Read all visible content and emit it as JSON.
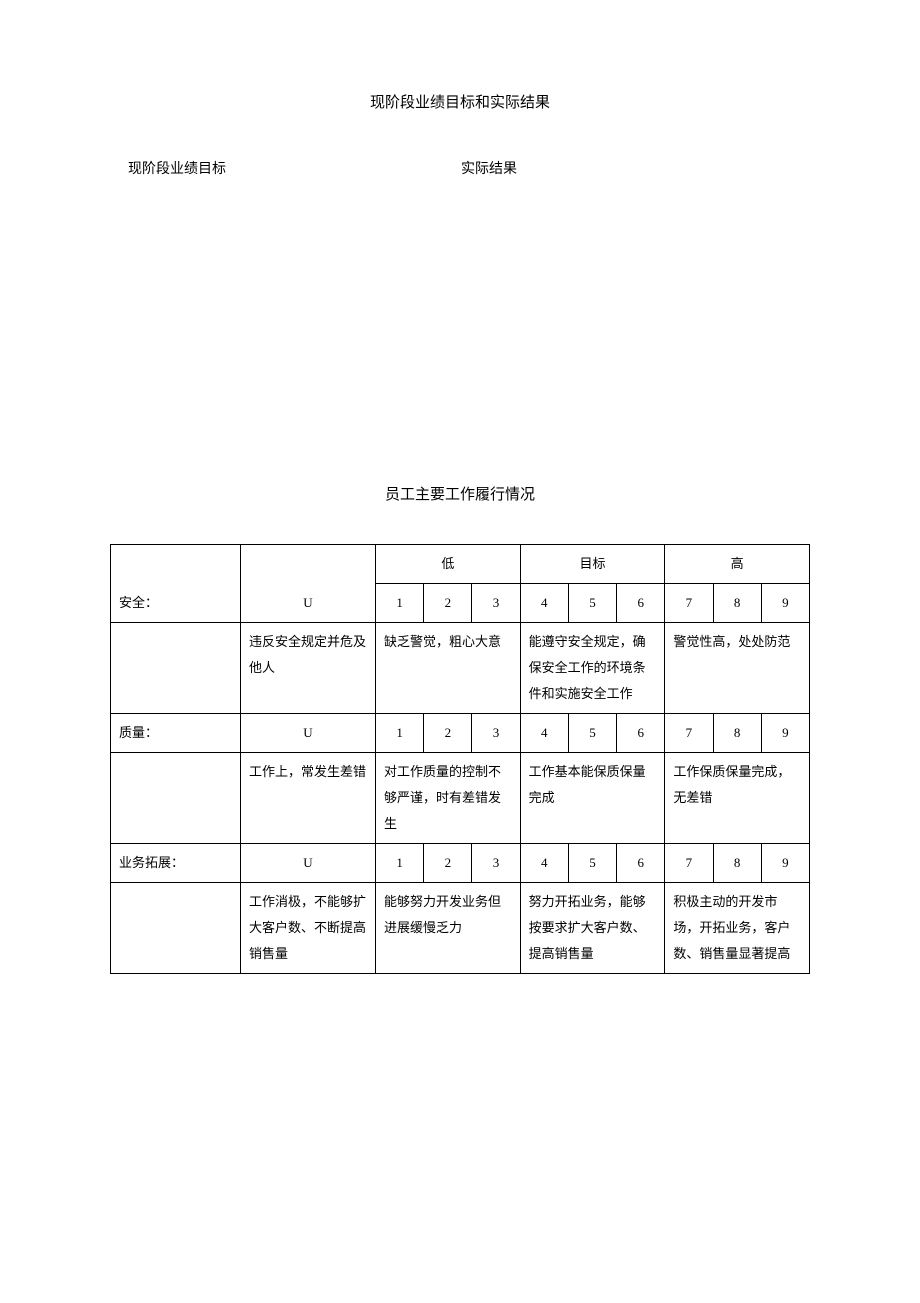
{
  "title1": "现阶段业绩目标和实际结果",
  "subtitle_left": "现阶段业绩目标",
  "subtitle_right": "实际结果",
  "title2": "员工主要工作履行情况",
  "headers": {
    "low": "低",
    "target": "目标",
    "high": "高"
  },
  "nums": [
    "1",
    "2",
    "3",
    "4",
    "5",
    "6",
    "7",
    "8",
    "9"
  ],
  "u_mark": "U",
  "rows": [
    {
      "label": "安全：",
      "desc": "违反安全规定并危及他人",
      "low": "缺乏警觉，粗心大意",
      "target": "能遵守安全规定，确保安全工作的环境条件和实施安全工作",
      "high": "警觉性高，处处防范"
    },
    {
      "label": "质量：",
      "desc": "工作上，常发生差错",
      "low": "对工作质量的控制不够严谨，时有差错发生",
      "target": "工作基本能保质保量完成",
      "high": "工作保质保量完成，无差错"
    },
    {
      "label": "业务拓展：",
      "desc": "工作消极，不能够扩大客户数、不断提高销售量",
      "low": "能够努力开发业务但进展缓慢乏力",
      "target": "努力开拓业务，能够按要求扩大客户数、提高销售量",
      "high": "积极主动的开发市场，开拓业务，客户数、销售量显著提高"
    }
  ]
}
